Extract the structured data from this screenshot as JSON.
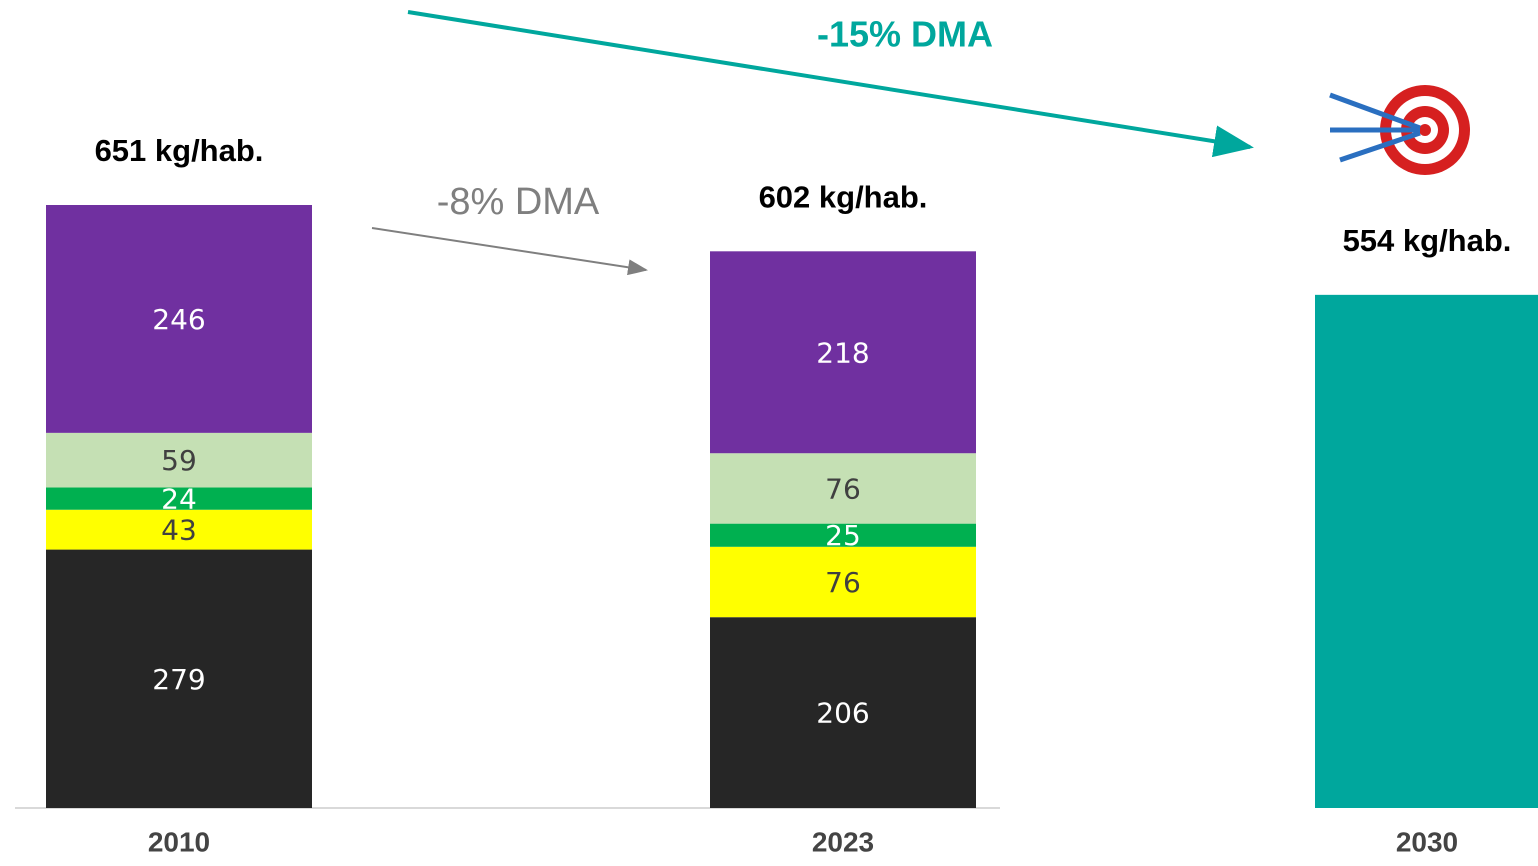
{
  "chart_data": {
    "type": "stacked_bar",
    "categories": [
      "2010",
      "2023",
      "2030"
    ],
    "ylim": [
      0,
      651
    ],
    "series": [
      {
        "color": "#262626",
        "label_color": "#ffffff",
        "values": [
          279,
          206,
          null
        ]
      },
      {
        "color": "#ffff00",
        "label_color": "#404040",
        "values": [
          43,
          76,
          null
        ]
      },
      {
        "color": "#00b050",
        "label_color": "#ffffff",
        "values": [
          24,
          25,
          null
        ]
      },
      {
        "color": "#c5e0b4",
        "label_color": "#404040",
        "values": [
          59,
          76,
          null
        ]
      },
      {
        "color": "#7030a0",
        "label_color": "#ffffff",
        "values": [
          246,
          218,
          null
        ]
      },
      {
        "color": "#00a79d",
        "label_color": "#ffffff",
        "values": [
          null,
          null,
          554
        ],
        "value_labels": [
          null,
          null,
          null
        ]
      }
    ],
    "total_labels": [
      "651 kg/hab.",
      "602 kg/hab.",
      "554 kg/hab."
    ],
    "annotations": [
      "-8% DMA",
      "-15% DMA"
    ]
  }
}
